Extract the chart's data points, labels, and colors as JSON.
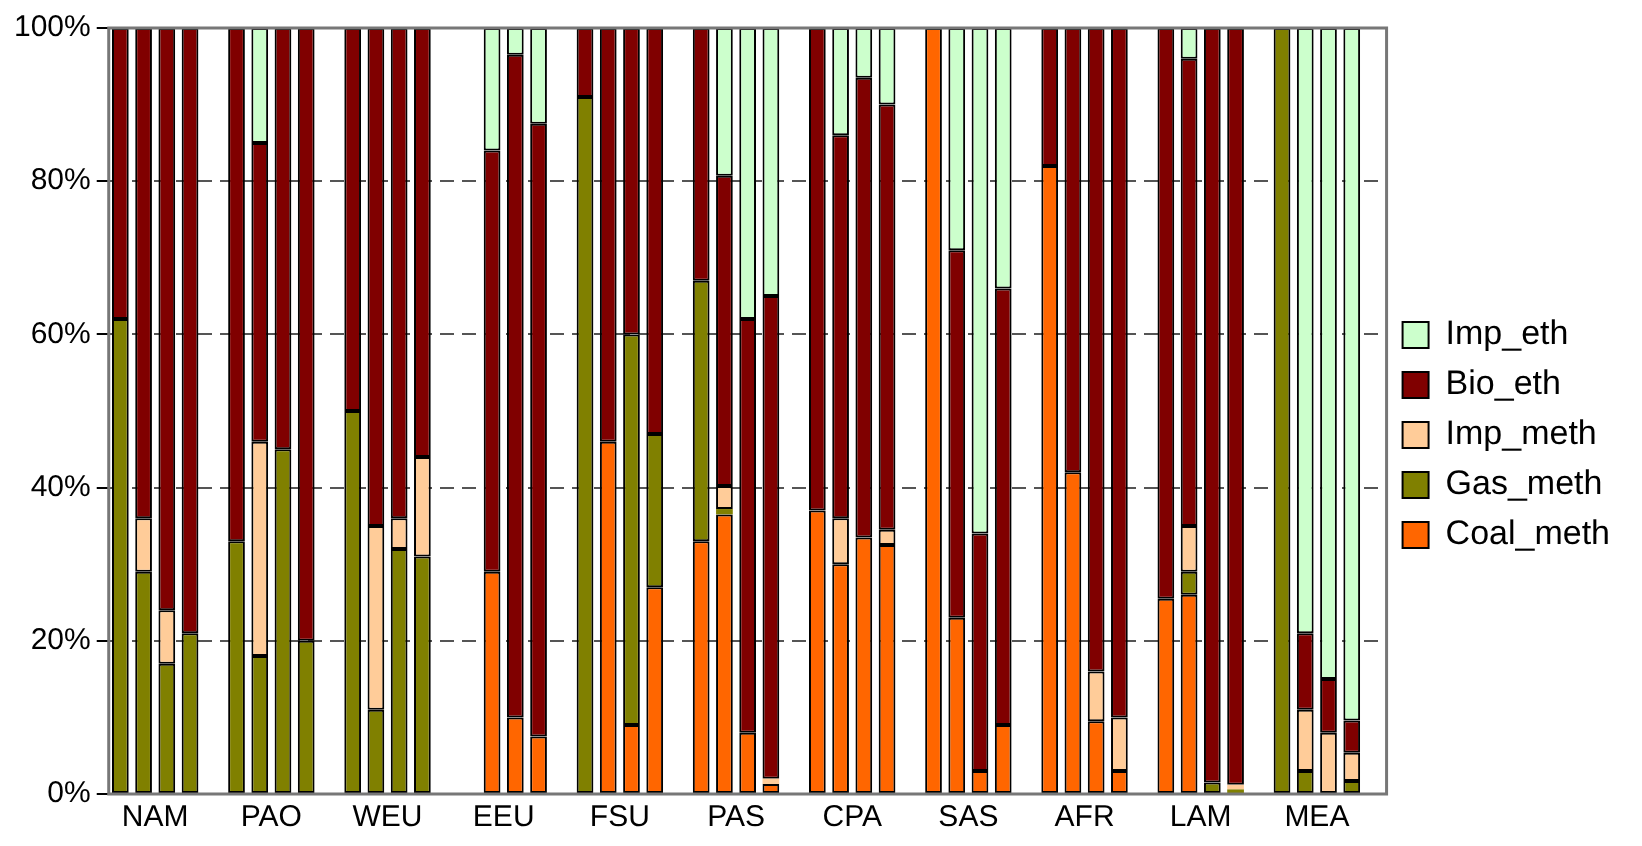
{
  "chart_data": {
    "type": "bar",
    "stacked": true,
    "categories": [
      null,
      "NAM",
      null,
      null,
      null,
      null,
      "PAO",
      null,
      null,
      null,
      null,
      "WEU",
      null,
      null,
      null,
      null,
      "EEU",
      null,
      null,
      null,
      null,
      "FSU",
      null,
      null,
      null,
      null,
      "PAS",
      null,
      null,
      null,
      null,
      "CPA",
      null,
      null,
      null,
      null,
      "SAS",
      null,
      null,
      null,
      null,
      "AFR",
      null,
      null,
      null,
      null,
      "LAM",
      null,
      null,
      null,
      null,
      "MEA",
      null,
      null,
      null
    ],
    "series": [
      {
        "name": "Coal_meth",
        "color": "#ff6600",
        "values": [
          null,
          null,
          null,
          null,
          null,
          null,
          null,
          null,
          null,
          null,
          null,
          null,
          null,
          null,
          null,
          null,
          29,
          10,
          7.5,
          null,
          null,
          46,
          9,
          27,
          null,
          33,
          36.5,
          8,
          1.3,
          null,
          37,
          30,
          33.5,
          32.5,
          null,
          100,
          23,
          3,
          9,
          null,
          82,
          42,
          9.5,
          3,
          null,
          25.5,
          26,
          null,
          null,
          null,
          null,
          null,
          null,
          null,
          null
        ]
      },
      {
        "name": "Gas_meth",
        "color": "#808000",
        "values": [
          62,
          29,
          17,
          21,
          null,
          33,
          18,
          45,
          20,
          null,
          50,
          11,
          32,
          31,
          null,
          null,
          null,
          null,
          null,
          null,
          91,
          null,
          51,
          20,
          null,
          34,
          0.7,
          null,
          null,
          null,
          null,
          null,
          null,
          null,
          null,
          null,
          null,
          null,
          null,
          null,
          null,
          null,
          null,
          null,
          null,
          null,
          3,
          1.5,
          0.6,
          null,
          100,
          3,
          null,
          1.7,
          null
        ]
      },
      {
        "name": "Imp_meth",
        "color": "#ffcc99",
        "values": [
          null,
          7,
          7,
          null,
          null,
          null,
          28,
          null,
          null,
          null,
          null,
          24,
          4,
          13,
          null,
          null,
          null,
          null,
          null,
          null,
          null,
          null,
          null,
          null,
          null,
          null,
          3,
          null,
          0.7,
          null,
          null,
          6,
          null,
          2,
          null,
          null,
          null,
          null,
          null,
          null,
          null,
          null,
          6.5,
          7,
          null,
          null,
          6,
          null,
          0.6,
          null,
          null,
          8,
          8,
          3.7,
          null
        ]
      },
      {
        "name": "Bio_eth",
        "color": "#800000",
        "values": [
          38,
          64,
          76,
          79,
          null,
          67,
          39,
          55,
          80,
          null,
          50,
          65,
          64,
          56,
          null,
          null,
          55,
          86.5,
          80,
          null,
          9,
          54,
          40,
          53,
          null,
          33,
          40.5,
          54,
          63,
          null,
          63,
          50,
          60,
          55.5,
          null,
          null,
          48,
          31,
          57,
          null,
          18,
          58,
          84,
          90,
          null,
          74.5,
          61,
          98.5,
          98.8,
          null,
          null,
          10,
          7,
          4.2,
          null
        ]
      },
      {
        "name": "Imp_eth",
        "color": "#ccffcc",
        "values": [
          null,
          null,
          null,
          null,
          null,
          null,
          15,
          null,
          null,
          null,
          null,
          null,
          null,
          null,
          null,
          null,
          16,
          3.5,
          12.5,
          null,
          null,
          null,
          null,
          null,
          null,
          null,
          19.3,
          38,
          35,
          null,
          null,
          14,
          6.5,
          10,
          null,
          null,
          29,
          66,
          34,
          null,
          null,
          null,
          null,
          null,
          null,
          null,
          4,
          null,
          null,
          null,
          null,
          79,
          85,
          90.4,
          null
        ]
      }
    ],
    "ylim": [
      0,
      100
    ],
    "yticks": [
      {
        "value": 0,
        "label": "0%"
      },
      {
        "value": 20,
        "label": "20%"
      },
      {
        "value": 40,
        "label": "40%"
      },
      {
        "value": 60,
        "label": "60%"
      },
      {
        "value": 80,
        "label": "80%"
      },
      {
        "value": 100,
        "label": "100%"
      }
    ],
    "grid": "y",
    "legend": "right"
  }
}
